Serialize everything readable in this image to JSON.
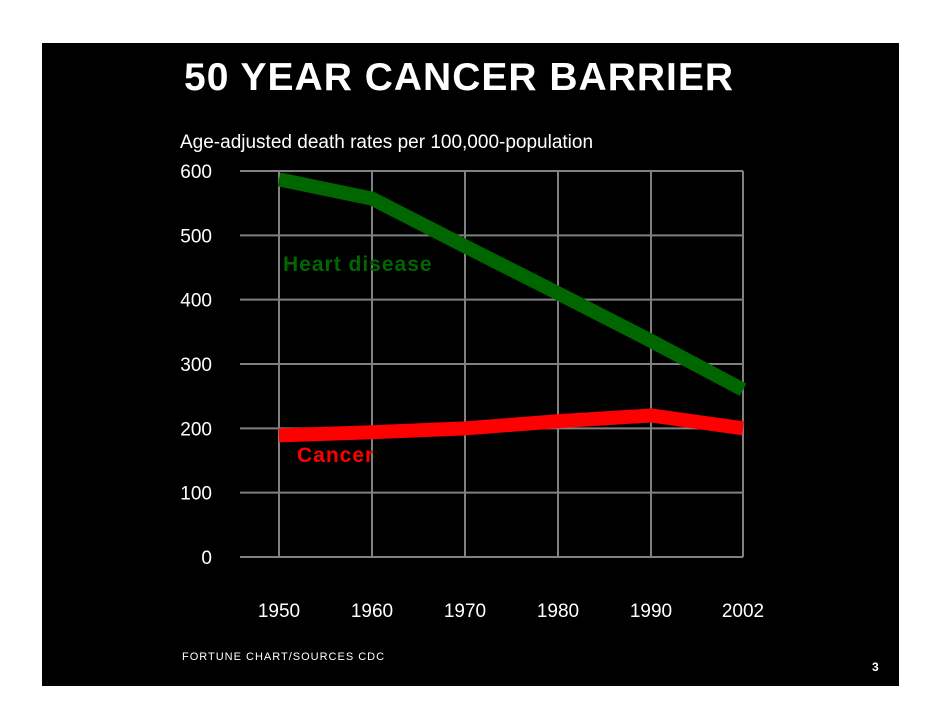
{
  "slide": {
    "title": "50 YEAR CANCER BARRIER",
    "subtitle": "Age-adjusted death rates per 100,000-population",
    "source": "FORTUNE CHART/SOURCES CDC",
    "page_number": "3",
    "background_color": "#000000",
    "text_color": "#ffffff"
  },
  "chart_data": {
    "type": "line",
    "title": "50 YEAR CANCER BARRIER",
    "subtitle": "Age-adjusted death rates per 100,000-population",
    "xlabel": "",
    "ylabel": "",
    "categories": [
      "1950",
      "1960",
      "1970",
      "1980",
      "1990",
      "2002"
    ],
    "y_ticks": [
      "600",
      "500",
      "400",
      "300",
      "200",
      "100",
      "0"
    ],
    "ylim": [
      0,
      600
    ],
    "grid": true,
    "grid_color": "#808080",
    "series": [
      {
        "name": "Heart disease",
        "color": "#006600",
        "values": [
          587,
          557,
          483,
          410,
          336,
          260
        ]
      },
      {
        "name": "Cancer",
        "color": "#ff0000",
        "values": [
          189,
          194,
          200,
          211,
          220,
          200
        ]
      }
    ]
  }
}
